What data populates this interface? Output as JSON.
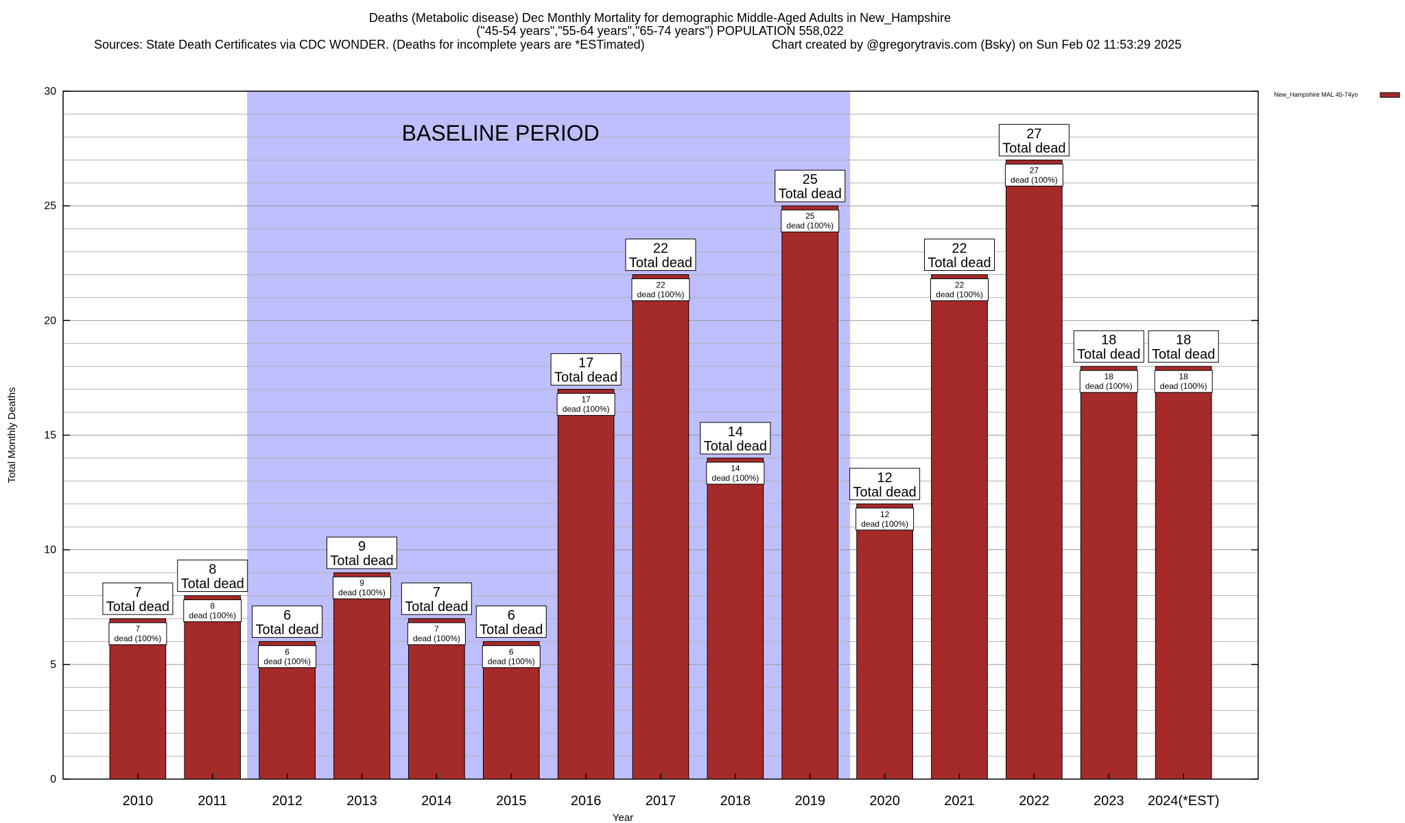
{
  "chart_data": {
    "type": "bar",
    "title_lines": [
      "Deaths (Metabolic disease) Dec Monthly Mortality for demographic Middle-Aged Adults in New_Hampshire",
      "(\"45-54 years\",\"55-64 years\",\"65-74 years\") POPULATION 558,022"
    ],
    "sources": "Sources: State Death Certificates via CDC WONDER. (Deaths for incomplete years are *ESTimated)",
    "credit": "Chart created by @gregorytravis.com (Bsky) on Sun Feb 02 11:53:29 2025",
    "xlabel": "Year",
    "ylabel": "Total Monthly Deaths",
    "ylim": [
      0,
      30
    ],
    "yticks": [
      0,
      5,
      10,
      15,
      20,
      25,
      30
    ],
    "grid": true,
    "legend": {
      "position": "top-right",
      "label": "New_Hampshire MAL 45-74yo"
    },
    "baseline": {
      "label": "BASELINE PERIOD",
      "from": "2012",
      "to": "2019"
    },
    "categories": [
      "2010",
      "2011",
      "2012",
      "2013",
      "2014",
      "2015",
      "2016",
      "2017",
      "2018",
      "2019",
      "2020",
      "2021",
      "2022",
      "2023",
      "2024(*EST)"
    ],
    "series": [
      {
        "name": "New_Hampshire MAL 45-74yo",
        "values": [
          7,
          8,
          6,
          9,
          7,
          6,
          17,
          22,
          14,
          25,
          12,
          22,
          27,
          18,
          18
        ]
      }
    ],
    "top_label_suffix": "Total dead",
    "inner_label_suffix": "dead (100%)"
  },
  "colors": {
    "bar": "#a52a2a",
    "baseline_shade": "#bfbffe",
    "grid": "#b0b0b0",
    "axis": "#000000"
  }
}
